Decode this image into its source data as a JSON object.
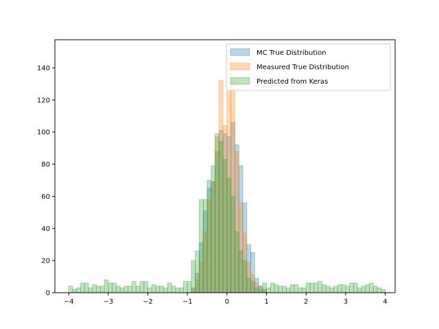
{
  "chart_data": {
    "type": "bar",
    "title": "",
    "xlabel": "",
    "ylabel": "",
    "xlim": [
      -4.35,
      4.25
    ],
    "ylim": [
      0,
      157.5
    ],
    "x_ticks": [
      -4,
      -3,
      -2,
      -1,
      0,
      1,
      2,
      3,
      4
    ],
    "y_ticks": [
      0,
      20,
      40,
      60,
      80,
      100,
      120,
      140
    ],
    "grid": false,
    "legend_position": "top-right",
    "bin_width": 0.1,
    "series": [
      {
        "name": "MC True Distribution",
        "color": "#1f77b4",
        "bins": [
          {
            "x": -0.9,
            "y": 3
          },
          {
            "x": -0.8,
            "y": 12
          },
          {
            "x": -0.7,
            "y": 31
          },
          {
            "x": -0.6,
            "y": 51
          },
          {
            "x": -0.5,
            "y": 70
          },
          {
            "x": -0.4,
            "y": 69
          },
          {
            "x": -0.3,
            "y": 88
          },
          {
            "x": -0.2,
            "y": 101
          },
          {
            "x": -0.1,
            "y": 99
          },
          {
            "x": 0.0,
            "y": 97
          },
          {
            "x": 0.1,
            "y": 106
          },
          {
            "x": 0.2,
            "y": 92
          },
          {
            "x": 0.3,
            "y": 79
          },
          {
            "x": 0.4,
            "y": 56
          },
          {
            "x": 0.5,
            "y": 30
          },
          {
            "x": 0.6,
            "y": 25
          },
          {
            "x": 0.7,
            "y": 9
          },
          {
            "x": 0.8,
            "y": 4
          },
          {
            "x": 0.9,
            "y": 2
          }
        ]
      },
      {
        "name": "Measured True Distribution",
        "color": "#ff7f0e",
        "bins": [
          {
            "x": -0.9,
            "y": 1
          },
          {
            "x": -0.8,
            "y": 8
          },
          {
            "x": -0.7,
            "y": 19
          },
          {
            "x": -0.6,
            "y": 38
          },
          {
            "x": -0.5,
            "y": 58
          },
          {
            "x": -0.4,
            "y": 69
          },
          {
            "x": -0.3,
            "y": 97
          },
          {
            "x": -0.2,
            "y": 132
          },
          {
            "x": -0.1,
            "y": 104
          },
          {
            "x": 0.0,
            "y": 151
          },
          {
            "x": 0.1,
            "y": 132
          },
          {
            "x": 0.2,
            "y": 88
          },
          {
            "x": 0.3,
            "y": 56
          },
          {
            "x": 0.4,
            "y": 37
          },
          {
            "x": 0.5,
            "y": 19
          },
          {
            "x": 0.6,
            "y": 11
          },
          {
            "x": 0.7,
            "y": 6
          },
          {
            "x": 0.8,
            "y": 2
          },
          {
            "x": 0.9,
            "y": 1
          }
        ]
      },
      {
        "name": "Predicted from Keras",
        "color": "#2ca02c",
        "bins": [
          {
            "x": -4.0,
            "y": 4
          },
          {
            "x": -3.9,
            "y": 2
          },
          {
            "x": -3.8,
            "y": 3
          },
          {
            "x": -3.7,
            "y": 6
          },
          {
            "x": -3.6,
            "y": 6
          },
          {
            "x": -3.5,
            "y": 3
          },
          {
            "x": -3.4,
            "y": 5
          },
          {
            "x": -3.3,
            "y": 4
          },
          {
            "x": -3.2,
            "y": 4
          },
          {
            "x": -3.1,
            "y": 8
          },
          {
            "x": -3.0,
            "y": 6
          },
          {
            "x": -2.9,
            "y": 6
          },
          {
            "x": -2.8,
            "y": 4
          },
          {
            "x": -2.7,
            "y": 3
          },
          {
            "x": -2.6,
            "y": 4
          },
          {
            "x": -2.5,
            "y": 4
          },
          {
            "x": -2.4,
            "y": 7
          },
          {
            "x": -2.3,
            "y": 4
          },
          {
            "x": -2.2,
            "y": 7
          },
          {
            "x": -2.1,
            "y": 7
          },
          {
            "x": -2.0,
            "y": 3
          },
          {
            "x": -1.9,
            "y": 5
          },
          {
            "x": -1.8,
            "y": 4
          },
          {
            "x": -1.7,
            "y": 4
          },
          {
            "x": -1.6,
            "y": 3
          },
          {
            "x": -1.5,
            "y": 6
          },
          {
            "x": -1.4,
            "y": 4
          },
          {
            "x": -1.3,
            "y": 3
          },
          {
            "x": -1.2,
            "y": 3
          },
          {
            "x": -1.1,
            "y": 7
          },
          {
            "x": -1.0,
            "y": 7
          },
          {
            "x": -0.9,
            "y": 20
          },
          {
            "x": -0.8,
            "y": 26
          },
          {
            "x": -0.7,
            "y": 58
          },
          {
            "x": -0.6,
            "y": 58
          },
          {
            "x": -0.5,
            "y": 65
          },
          {
            "x": -0.4,
            "y": 79
          },
          {
            "x": -0.3,
            "y": 99
          },
          {
            "x": -0.2,
            "y": 94
          },
          {
            "x": -0.1,
            "y": 83
          },
          {
            "x": 0.0,
            "y": 71
          },
          {
            "x": 0.1,
            "y": 60
          },
          {
            "x": 0.2,
            "y": 38
          },
          {
            "x": 0.3,
            "y": 26
          },
          {
            "x": 0.4,
            "y": 20
          },
          {
            "x": 0.5,
            "y": 9
          },
          {
            "x": 0.6,
            "y": 7
          },
          {
            "x": 0.7,
            "y": 3
          },
          {
            "x": 0.8,
            "y": 4
          },
          {
            "x": 0.9,
            "y": 6
          },
          {
            "x": 1.0,
            "y": 3
          },
          {
            "x": 1.1,
            "y": 6
          },
          {
            "x": 1.2,
            "y": 5
          },
          {
            "x": 1.3,
            "y": 4
          },
          {
            "x": 1.4,
            "y": 4
          },
          {
            "x": 1.5,
            "y": 3
          },
          {
            "x": 1.6,
            "y": 5
          },
          {
            "x": 1.7,
            "y": 5
          },
          {
            "x": 1.8,
            "y": 3
          },
          {
            "x": 1.9,
            "y": 3
          },
          {
            "x": 2.0,
            "y": 6
          },
          {
            "x": 2.1,
            "y": 6
          },
          {
            "x": 2.2,
            "y": 6
          },
          {
            "x": 2.3,
            "y": 7
          },
          {
            "x": 2.4,
            "y": 5
          },
          {
            "x": 2.5,
            "y": 4
          },
          {
            "x": 2.6,
            "y": 3
          },
          {
            "x": 2.7,
            "y": 4
          },
          {
            "x": 2.8,
            "y": 5
          },
          {
            "x": 2.9,
            "y": 5
          },
          {
            "x": 3.0,
            "y": 4
          },
          {
            "x": 3.1,
            "y": 6
          },
          {
            "x": 3.2,
            "y": 6
          },
          {
            "x": 3.3,
            "y": 3
          },
          {
            "x": 3.4,
            "y": 4
          },
          {
            "x": 3.5,
            "y": 5
          },
          {
            "x": 3.6,
            "y": 6
          },
          {
            "x": 3.7,
            "y": 4
          },
          {
            "x": 3.8,
            "y": 3
          },
          {
            "x": 3.9,
            "y": 2
          }
        ]
      }
    ]
  }
}
